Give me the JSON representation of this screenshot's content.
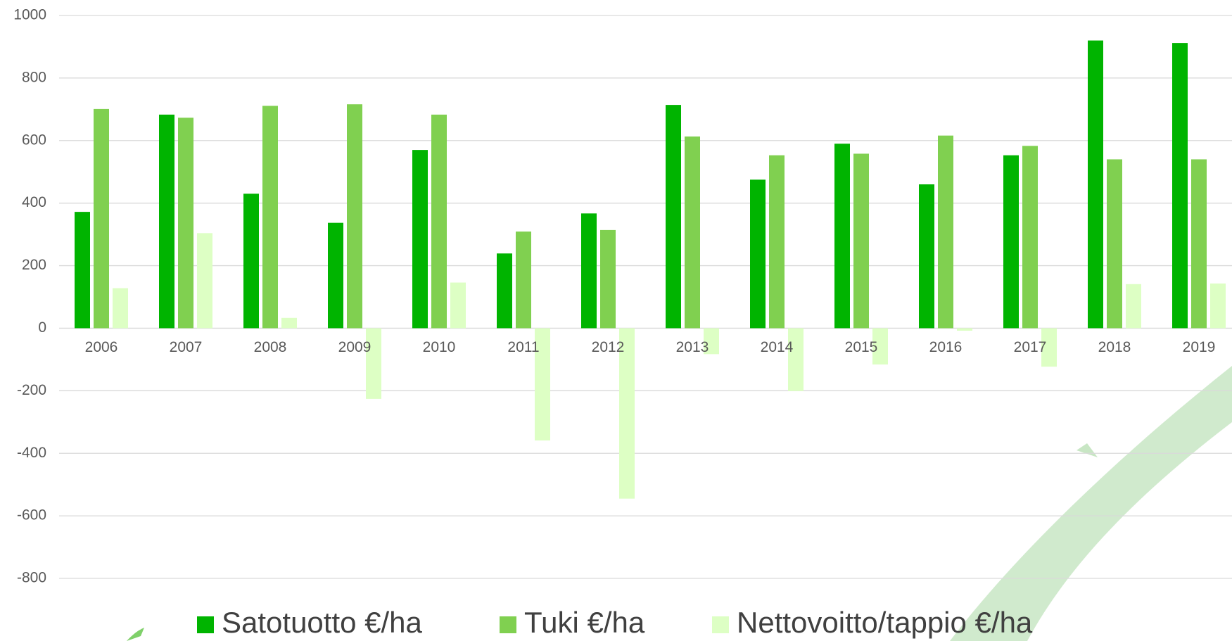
{
  "chart_data": {
    "type": "bar",
    "categories": [
      "2006",
      "2007",
      "2008",
      "2009",
      "2010",
      "2011",
      "2012",
      "2013",
      "2014",
      "2015",
      "2016",
      "2017",
      "2018",
      "2019"
    ],
    "series": [
      {
        "name": "Satotuotto €/ha",
        "color": "#00b400",
        "values": [
          372,
          683,
          430,
          337,
          570,
          239,
          367,
          714,
          475,
          590,
          460,
          553,
          920,
          912
        ]
      },
      {
        "name": "Tuki €/ha",
        "color": "#80d050",
        "values": [
          701,
          673,
          711,
          716,
          683,
          309,
          314,
          613,
          553,
          558,
          616,
          583,
          540,
          540
        ]
      },
      {
        "name": "Nettovoitto/tappio €/ha",
        "color": "#ddffc4",
        "values": [
          128,
          304,
          33,
          -226,
          146,
          -359,
          -545,
          -83,
          -201,
          -116,
          -8,
          -123,
          141,
          143
        ]
      }
    ],
    "ylim": [
      -800,
      1000
    ],
    "yticks": [
      -800,
      -600,
      -400,
      -200,
      0,
      200,
      400,
      600,
      800,
      1000
    ],
    "grid": true,
    "legend": "bottom"
  }
}
